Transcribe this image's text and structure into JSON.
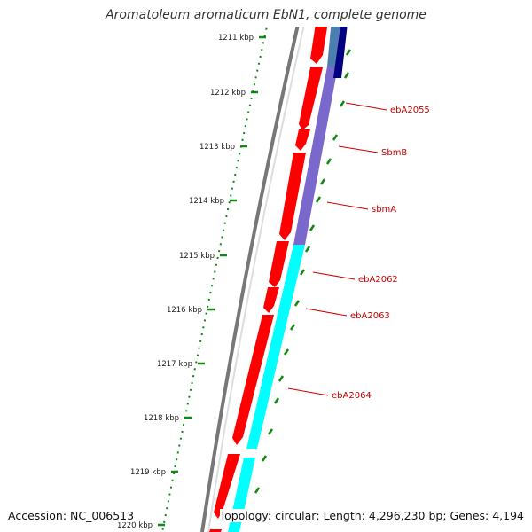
{
  "title": "Aromatoleum aromaticum EbN1, complete genome",
  "footer": {
    "accession": "Accession: NC_006513",
    "topology": "Topology: circular; Length: 4,296,230 bp; Genes: 4,194"
  },
  "ticks": [
    {
      "label": "1211 kbp"
    },
    {
      "label": "1212 kbp"
    },
    {
      "label": "1213 kbp"
    },
    {
      "label": "1214 kbp"
    },
    {
      "label": "1215 kbp"
    },
    {
      "label": "1216 kbp"
    },
    {
      "label": "1217 kbp"
    },
    {
      "label": "1218 kbp"
    },
    {
      "label": "1219 kbp"
    },
    {
      "label": "1220 kbp"
    }
  ],
  "genes": [
    {
      "label": "ebA2055"
    },
    {
      "label": "SbmB"
    },
    {
      "label": "sbmA"
    },
    {
      "label": "ebA2062"
    },
    {
      "label": "ebA2063"
    },
    {
      "label": "ebA2064"
    }
  ],
  "colors": {
    "cds": "#ff0000",
    "cog_purple": "#7b68cc",
    "cog_cyan": "#00ffff",
    "cog_navy": "#000080",
    "cog_steel": "#4a7fb0",
    "tick": "#118811",
    "backbone": "#777777",
    "label": "#cc0000"
  }
}
